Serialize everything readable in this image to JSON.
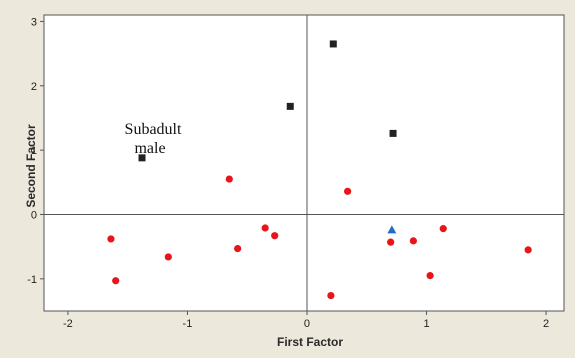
{
  "chart_data": {
    "type": "scatter",
    "xlabel": "First Factor",
    "ylabel": "Second Factor",
    "xlim": [
      -2.2,
      2.15
    ],
    "ylim": [
      -1.5,
      3.1
    ],
    "x_ticks": [
      -2,
      -1,
      0,
      1,
      2
    ],
    "y_ticks": [
      -1,
      0,
      1,
      2,
      3
    ],
    "reference_lines": {
      "x": 0,
      "y": 0
    },
    "grid": false,
    "annotation": {
      "line1": "Subadult",
      "line2": "male"
    },
    "series": [
      {
        "marker": "square",
        "color": "#222222",
        "points": [
          {
            "x": 0.22,
            "y": 2.65
          },
          {
            "x": -0.14,
            "y": 1.68
          },
          {
            "x": 0.72,
            "y": 1.26
          },
          {
            "x": -1.38,
            "y": 0.88
          }
        ]
      },
      {
        "marker": "circle",
        "color": "#e8141a",
        "points": [
          {
            "x": -0.65,
            "y": 0.55
          },
          {
            "x": 0.34,
            "y": 0.36
          },
          {
            "x": -1.64,
            "y": -0.38
          },
          {
            "x": -1.6,
            "y": -1.03
          },
          {
            "x": -1.16,
            "y": -0.66
          },
          {
            "x": -0.58,
            "y": -0.53
          },
          {
            "x": -0.35,
            "y": -0.21
          },
          {
            "x": -0.27,
            "y": -0.33
          },
          {
            "x": 0.2,
            "y": -1.26
          },
          {
            "x": 0.7,
            "y": -0.43
          },
          {
            "x": 0.89,
            "y": -0.41
          },
          {
            "x": 1.03,
            "y": -0.95
          },
          {
            "x": 1.14,
            "y": -0.22
          },
          {
            "x": 1.85,
            "y": -0.55
          }
        ]
      },
      {
        "marker": "triangle",
        "color": "#1f6fc9",
        "points": [
          {
            "x": 0.71,
            "y": -0.24
          }
        ]
      }
    ]
  }
}
